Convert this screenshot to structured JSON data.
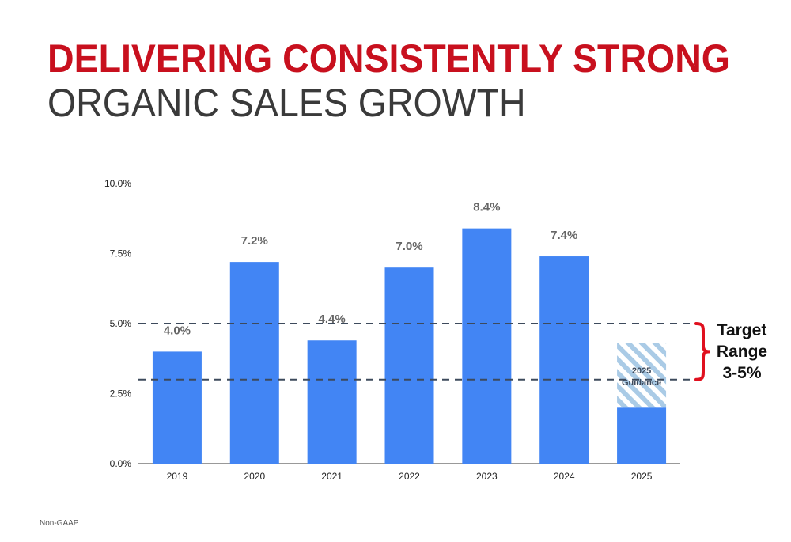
{
  "header": {
    "title": "DELIVERING CONSISTENTLY STRONG",
    "subtitle": "ORGANIC SALES GROWTH"
  },
  "footnote": "Non-GAAP",
  "chart_data": {
    "type": "bar",
    "categories": [
      "2019",
      "2020",
      "2021",
      "2022",
      "2023",
      "2024",
      "2025"
    ],
    "values": [
      4.0,
      7.2,
      4.4,
      7.0,
      8.4,
      7.4,
      2.0
    ],
    "data_labels": [
      "4.0%",
      "7.2%",
      "4.4%",
      "7.0%",
      "8.4%",
      "7.4%",
      ""
    ],
    "yticks": [
      0,
      2.5,
      5.0,
      7.5,
      10.0
    ],
    "ytick_labels": [
      "0.0%",
      "2.5%",
      "5.0%",
      "7.5%",
      "10.0%"
    ],
    "ylim": [
      0,
      10
    ],
    "bar_color": "#4285f4",
    "grid": false,
    "guidance": {
      "category": "2025",
      "from": 2.0,
      "to": 4.3,
      "label_line1": "2025",
      "label_line2": "Guidance",
      "hatch_color": "#aacbe6"
    },
    "target_range": {
      "low": 3.0,
      "high": 5.0,
      "label_lines": [
        "Target",
        "Range",
        "3-5%"
      ],
      "line_color": "#3d4a5c",
      "brace_color": "#e0101e"
    }
  }
}
